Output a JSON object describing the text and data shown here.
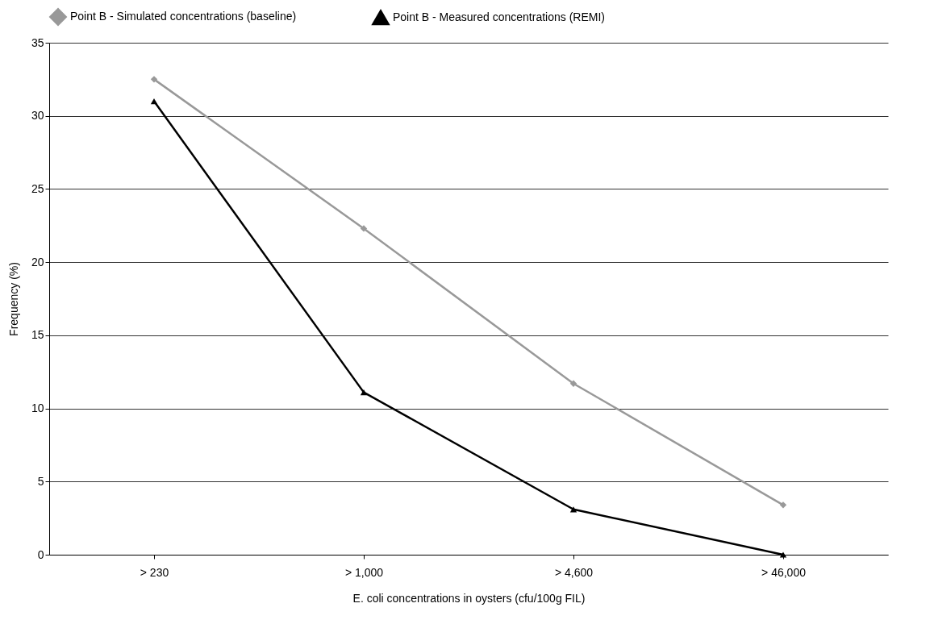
{
  "chart_data": {
    "type": "line",
    "xlabel": "E. coli concentrations in oysters (cfu/100g FIL)",
    "ylabel": "Frequency (%)",
    "categories": [
      "> 230",
      "> 1,000",
      "> 4,600",
      "> 46,000"
    ],
    "series": [
      {
        "name": "Point B - Simulated concentrations (baseline)",
        "color": "#999999",
        "marker": "diamond",
        "values": [
          32.5,
          22.3,
          11.7,
          3.4
        ]
      },
      {
        "name": "Point B - Measured concentrations (REMI)",
        "color": "#000000",
        "marker": "triangle",
        "values": [
          31.0,
          11.1,
          3.1,
          0
        ]
      }
    ],
    "ylim": [
      0,
      35
    ],
    "yticks": [
      0,
      5,
      10,
      15,
      20,
      25,
      30,
      35
    ],
    "grid": "y",
    "legend": "top"
  }
}
